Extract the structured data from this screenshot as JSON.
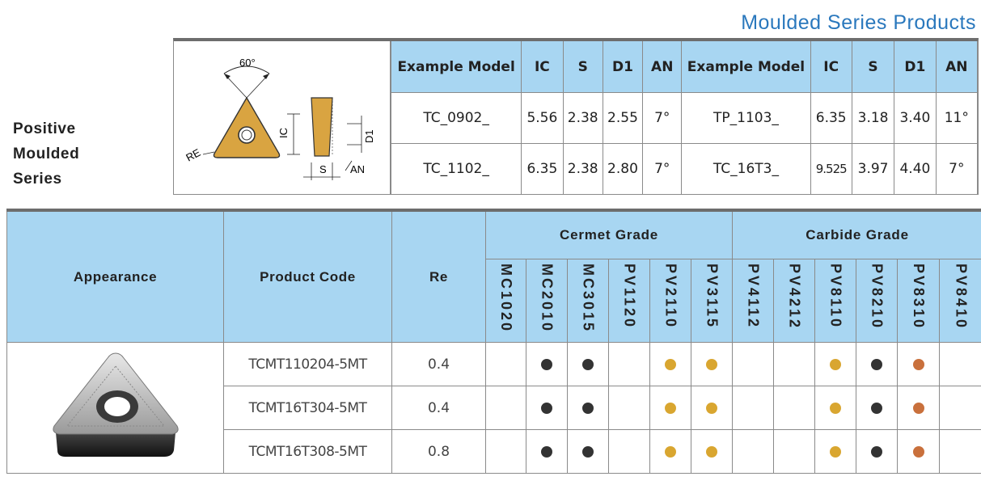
{
  "page": {
    "title": "Moulded Series Products",
    "side_label": [
      "Positive",
      "Moulded",
      "Series"
    ]
  },
  "diagram": {
    "angle": "60°",
    "labels": {
      "ic": "IC",
      "d1": "D1",
      "re": "RE",
      "s": "S",
      "an": "AN"
    }
  },
  "spec_table": {
    "headers": [
      "Example Model",
      "IC",
      "S",
      "D1",
      "AN",
      "Example Model",
      "IC",
      "S",
      "D1",
      "AN"
    ],
    "rows": [
      [
        "TC_0902_",
        "5.56",
        "2.38",
        "2.55",
        "7°",
        "TP_1103_",
        "6.35",
        "3.18",
        "3.40",
        "11°"
      ],
      [
        "TC_1102_",
        "6.35",
        "2.38",
        "2.80",
        "7°",
        "TC_16T3_",
        "9.525",
        "3.97",
        "4.40",
        "7°"
      ]
    ]
  },
  "main_table": {
    "headers": {
      "appearance": "Appearance",
      "product_code": "Product Code",
      "re": "Re",
      "cermet_group": "Cermet Grade",
      "carbide_group": "Carbide Grade"
    },
    "grades": [
      "MC1020",
      "MC2010",
      "MC3015",
      "PV1120",
      "PV2110",
      "PV3115",
      "PV4112",
      "PV4212",
      "PV8110",
      "PV8210",
      "PV8310",
      "PV8410"
    ],
    "colors": {
      "black": "#333333",
      "gold": "#d9a630",
      "copper": "#c9703c"
    },
    "rows": [
      {
        "code": "TCMT110204-5MT",
        "re": "0.4",
        "dots": [
          "",
          "black",
          "black",
          "",
          "gold",
          "gold",
          "",
          "",
          "gold",
          "black",
          "copper",
          ""
        ]
      },
      {
        "code": "TCMT16T304-5MT",
        "re": "0.4",
        "dots": [
          "",
          "black",
          "black",
          "",
          "gold",
          "gold",
          "",
          "",
          "gold",
          "black",
          "copper",
          ""
        ]
      },
      {
        "code": "TCMT16T308-5MT",
        "re": "0.8",
        "dots": [
          "",
          "black",
          "black",
          "",
          "gold",
          "gold",
          "",
          "",
          "gold",
          "black",
          "copper",
          ""
        ]
      }
    ]
  }
}
